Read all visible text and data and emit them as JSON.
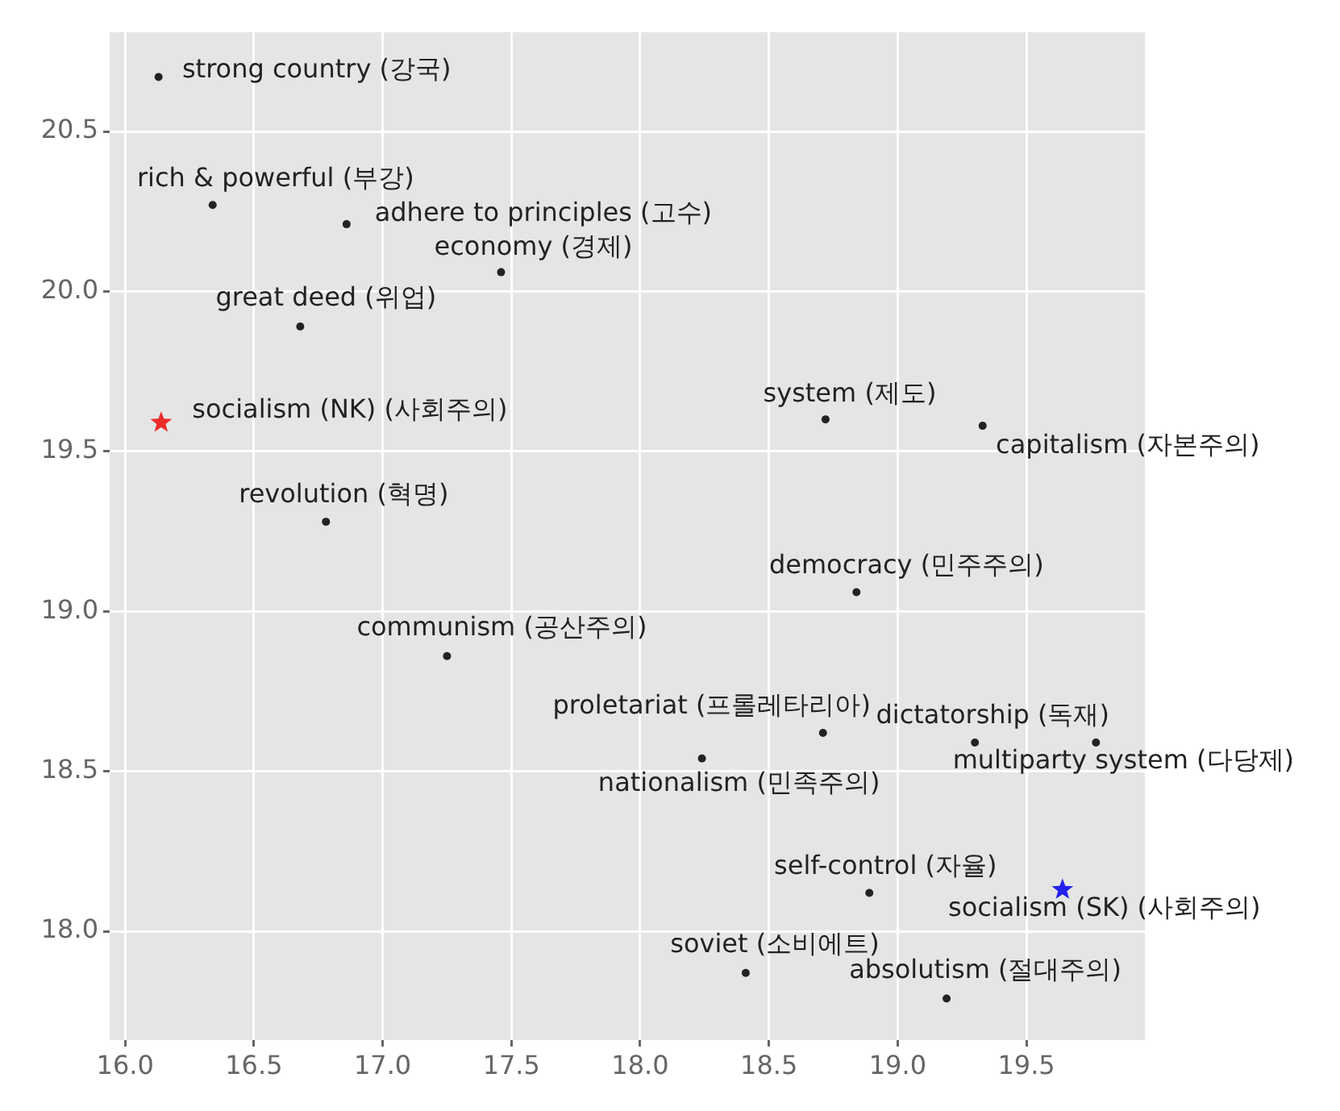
{
  "chart_data": {
    "type": "scatter",
    "xlim": [
      15.94,
      19.96
    ],
    "ylim": [
      17.66,
      20.81
    ],
    "xticks": [
      {
        "value": 16,
        "label": "16.0"
      },
      16.5,
      {
        "value": 17,
        "label": "17.0"
      },
      17.5,
      {
        "value": 18,
        "label": "18.0"
      },
      18.5,
      {
        "value": 19,
        "label": "19.0"
      },
      19.5
    ],
    "yticks": [
      {
        "value": 18,
        "label": "18.0"
      },
      18.5,
      {
        "value": 19,
        "label": "19.0"
      },
      19.5,
      {
        "value": 20,
        "label": "20.0"
      },
      20.5
    ],
    "grid": true,
    "legend": false,
    "series": [
      {
        "name": "strong country (강국)",
        "color": "#222222",
        "marker": "circle",
        "x": [
          16.13
        ],
        "values": [
          20.67
        ]
      },
      {
        "name": "rich & powerful (부강)",
        "color": "#222222",
        "marker": "circle",
        "x": [
          16.34
        ],
        "values": [
          20.27
        ]
      },
      {
        "name": "adhere to principles (고수)",
        "color": "#222222",
        "marker": "circle",
        "x": [
          16.86
        ],
        "values": [
          20.21
        ]
      },
      {
        "name": "economy (경제)",
        "color": "#222222",
        "marker": "circle",
        "x": [
          17.46
        ],
        "values": [
          20.06
        ]
      },
      {
        "name": "great deed (위업)",
        "color": "#222222",
        "marker": "circle",
        "x": [
          16.68
        ],
        "values": [
          19.89
        ]
      },
      {
        "name": "socialism (NK) (사회주의)",
        "color": "#ee2b2b",
        "marker": "star",
        "x": [
          16.14
        ],
        "values": [
          19.59
        ]
      },
      {
        "name": "revolution (혁명)",
        "color": "#222222",
        "marker": "circle",
        "x": [
          16.78
        ],
        "values": [
          19.28
        ]
      },
      {
        "name": "communism (공산주의)",
        "color": "#222222",
        "marker": "circle",
        "x": [
          17.25
        ],
        "values": [
          18.86
        ]
      },
      {
        "name": "system (제도)",
        "color": "#222222",
        "marker": "circle",
        "x": [
          18.72
        ],
        "values": [
          19.6
        ]
      },
      {
        "name": "capitalism (자본주의)",
        "color": "#222222",
        "marker": "circle",
        "x": [
          19.33
        ],
        "values": [
          19.58
        ]
      },
      {
        "name": "democracy (민주주의)",
        "color": "#222222",
        "marker": "circle",
        "x": [
          18.84
        ],
        "values": [
          19.06
        ]
      },
      {
        "name": "proletariat (프롤레타리아)",
        "color": "#222222",
        "marker": "circle",
        "x": [
          18.71
        ],
        "values": [
          18.62
        ]
      },
      {
        "name": "nationalism (민족주의)",
        "color": "#222222",
        "marker": "circle",
        "x": [
          18.24
        ],
        "values": [
          18.54
        ]
      },
      {
        "name": "dictatorship (독재)",
        "color": "#222222",
        "marker": "circle",
        "x": [
          19.3
        ],
        "values": [
          18.59
        ]
      },
      {
        "name": "multiparty system (다당제)",
        "color": "#222222",
        "marker": "circle",
        "x": [
          19.77
        ],
        "values": [
          18.59
        ]
      },
      {
        "name": "self-control (자율)",
        "color": "#222222",
        "marker": "circle",
        "x": [
          18.89
        ],
        "values": [
          18.12
        ]
      },
      {
        "name": "socialism (SK) (사회주의)",
        "color": "#2222ee",
        "marker": "star",
        "x": [
          19.64
        ],
        "values": [
          18.13
        ]
      },
      {
        "name": "soviet (소비에트)",
        "color": "#222222",
        "marker": "circle",
        "x": [
          18.41
        ],
        "values": [
          17.87
        ]
      },
      {
        "name": "absolutism (절대주의)",
        "color": "#222222",
        "marker": "circle",
        "x": [
          19.19
        ],
        "values": [
          17.79
        ]
      }
    ]
  }
}
